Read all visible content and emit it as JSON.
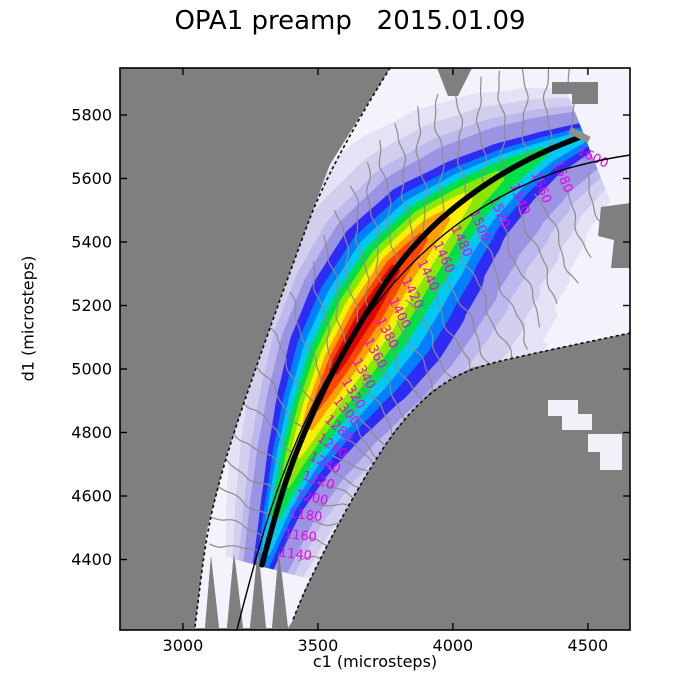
{
  "chart": {
    "title": "OPA1 preamp   2015.01.09",
    "xlabel": "c1 (microsteps)",
    "ylabel": "d1 (microsteps)"
  },
  "chart_data": {
    "type": "heatmap",
    "title": "OPA1 preamp   2015.01.09",
    "xlabel": "c1 (microsteps)",
    "ylabel": "d1 (microsteps)",
    "x_ticks": [
      3000,
      3500,
      4000,
      4500
    ],
    "y_ticks": [
      5800,
      5600,
      5400,
      5200,
      5000,
      4800,
      4600,
      4400
    ],
    "xlim": [
      2767,
      4656
    ],
    "ylim": [
      4178,
      5948
    ],
    "grid": false,
    "background_color": "#7f7f7f",
    "contour_levels": [
      1140,
      1160,
      1180,
      1200,
      1220,
      1240,
      1260,
      1280,
      1300,
      1320,
      1340,
      1360,
      1380,
      1400,
      1420,
      1440,
      1460,
      1480,
      1500,
      1520,
      1540,
      1560,
      1580,
      1600
    ],
    "contour_label_color": "#ee00ee",
    "contour_line_color": "#8c8c8c",
    "colormap_bands_outer_to_inner": [
      "#e4e2f5",
      "#d2cfee",
      "#beb9ec",
      "#9a94e2",
      "#2e2cf4",
      "#0080ff",
      "#00c8f0",
      "#00df48",
      "#8ae800",
      "#f7f000",
      "#ffa000",
      "#ff4400",
      "#dc0500"
    ],
    "intensity_peak_region": {
      "c1": 3550,
      "d1": 5100
    },
    "ridge_curve_thick": [
      [
        3293,
        4383
      ],
      [
        3352,
        4572
      ],
      [
        3415,
        4729
      ],
      [
        3489,
        4877
      ],
      [
        3574,
        5022
      ],
      [
        3674,
        5170
      ],
      [
        3785,
        5318
      ],
      [
        3915,
        5444
      ],
      [
        4056,
        5545
      ],
      [
        4204,
        5627
      ],
      [
        4341,
        5687
      ],
      [
        4481,
        5734
      ]
    ],
    "fit_curve_thin": [
      [
        3200,
        4178
      ],
      [
        3278,
        4436
      ],
      [
        3370,
        4672
      ],
      [
        3481,
        4893
      ],
      [
        3619,
        5098
      ],
      [
        3785,
        5280
      ],
      [
        3970,
        5432
      ],
      [
        4167,
        5542
      ],
      [
        4370,
        5620
      ],
      [
        4544,
        5658
      ],
      [
        4656,
        5674
      ]
    ],
    "limit_curve_left_dotted": [
      [
        3767,
        5948
      ],
      [
        3544,
        5643
      ],
      [
        3385,
        5280
      ],
      [
        3248,
        4950
      ],
      [
        3156,
        4713
      ],
      [
        3089,
        4493
      ],
      [
        3044,
        4184
      ]
    ],
    "limit_curve_right_dotted": [
      [
        4656,
        5113
      ],
      [
        4322,
        5054
      ],
      [
        4063,
        5003
      ],
      [
        3915,
        4928
      ],
      [
        3785,
        4808
      ],
      [
        3667,
        4651
      ],
      [
        3544,
        4462
      ],
      [
        3452,
        4304
      ],
      [
        3404,
        4203
      ]
    ]
  }
}
